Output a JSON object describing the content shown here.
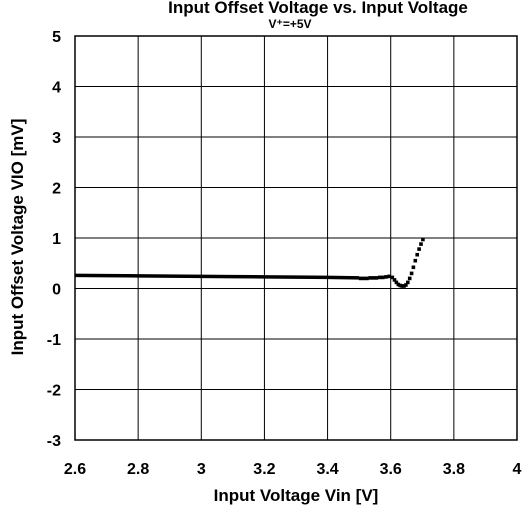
{
  "chart_data": {
    "type": "line",
    "title": "Input Offset Voltage vs. Input Voltage",
    "subtitle": "V⁺=+5V",
    "xlabel": "Input Voltage Vin [V]",
    "ylabel": "Input Offset Voltage VIO [mV]",
    "xlim": [
      2.6,
      4.0
    ],
    "ylim": [
      -3,
      5
    ],
    "xticks": [
      2.6,
      2.8,
      3.0,
      3.2,
      3.4,
      3.6,
      3.8,
      4.0
    ],
    "xtick_labels": [
      "2.6",
      "2.8",
      "3",
      "3.2",
      "3.4",
      "3.6",
      "3.8",
      "4"
    ],
    "yticks": [
      -3,
      -2,
      -1,
      0,
      1,
      2,
      3,
      4,
      5
    ],
    "ytick_labels": [
      "-3",
      "-2",
      "-1",
      "0",
      "1",
      "2",
      "3",
      "4",
      "5"
    ],
    "grid": true,
    "series": [
      {
        "color": "#000000",
        "x": [
          2.6,
          2.7,
          2.8,
          2.9,
          3.0,
          3.1,
          3.2,
          3.3,
          3.4,
          3.45,
          3.5
        ],
        "y": [
          0.26,
          0.255,
          0.25,
          0.245,
          0.24,
          0.235,
          0.23,
          0.225,
          0.22,
          0.215,
          0.21
        ]
      },
      {
        "color": "#000000",
        "x": [
          3.505,
          3.515,
          3.525,
          3.535,
          3.545,
          3.555,
          3.565,
          3.575,
          3.585,
          3.595,
          3.605,
          3.612,
          3.618,
          3.624,
          3.63,
          3.636,
          3.642,
          3.648,
          3.654,
          3.66,
          3.666,
          3.672,
          3.678,
          3.684,
          3.69,
          3.696,
          3.702
        ],
        "y": [
          0.2,
          0.2,
          0.2,
          0.21,
          0.21,
          0.21,
          0.22,
          0.22,
          0.23,
          0.24,
          0.22,
          0.17,
          0.12,
          0.08,
          0.06,
          0.05,
          0.05,
          0.07,
          0.12,
          0.2,
          0.3,
          0.42,
          0.55,
          0.67,
          0.78,
          0.88,
          0.97
        ]
      }
    ]
  }
}
